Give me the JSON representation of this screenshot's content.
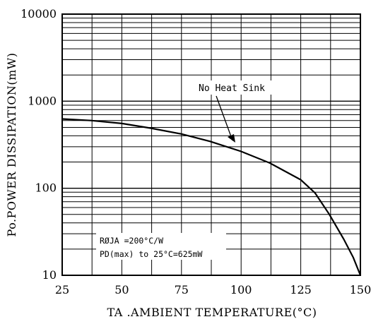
{
  "chart_data": {
    "type": "line",
    "title": "",
    "xlabel": "TA .AMBIENT TEMPERATURE(°C)",
    "ylabel": "Po.POWER DISSIPATION(mW)",
    "xlim": [
      25,
      150
    ],
    "ylim": [
      10,
      10000
    ],
    "y_scale": "log",
    "grid": true,
    "x_ticks": [
      25,
      50,
      75,
      100,
      125,
      150
    ],
    "x_tick_labels": [
      "25",
      "50",
      "75",
      "100",
      "125",
      "150"
    ],
    "y_ticks": [
      10,
      100,
      1000,
      10000
    ],
    "y_tick_labels": [
      "10",
      "100",
      "1000",
      "10000"
    ],
    "series": [
      {
        "name": "No Heat Sink",
        "x": [
          25,
          37,
          50,
          62,
          75,
          87,
          100,
          112,
          125,
          131,
          137,
          143,
          147,
          150
        ],
        "y": [
          625,
          600,
          555,
          490,
          420,
          345,
          265,
          195,
          125,
          88,
          50,
          26,
          16,
          10
        ]
      }
    ],
    "annotations": {
      "series_label": "No Heat Sink",
      "note_line1": "RØJA =200°C/W",
      "note_line2": "PD(max) to 25°C=625mW"
    }
  }
}
